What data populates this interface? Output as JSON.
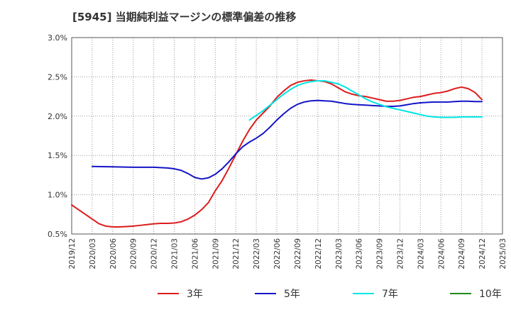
{
  "chart_data": {
    "type": "line",
    "title": "[5945]  当期純利益マージンの標準偏差の推移",
    "xlabel": "",
    "ylabel": "",
    "ylim": [
      0.5,
      3.0
    ],
    "xlim": [
      "2019/12",
      "2025/03"
    ],
    "y_ticks": [
      "0.5%",
      "1.0%",
      "1.5%",
      "2.0%",
      "2.5%",
      "3.0%"
    ],
    "x_ticks": [
      "2019/12",
      "2020/03",
      "2020/06",
      "2020/09",
      "2020/12",
      "2021/03",
      "2021/06",
      "2021/09",
      "2021/12",
      "2022/03",
      "2022/06",
      "2022/09",
      "2022/12",
      "2023/03",
      "2023/06",
      "2023/09",
      "2023/12",
      "2024/03",
      "2024/06",
      "2024/09",
      "2024/12",
      "2025/03"
    ],
    "grid": true,
    "legend_position": "bottom",
    "series": [
      {
        "name": "3年",
        "color": "#dd1c1c",
        "points": [
          [
            "2019/12",
            0.87
          ],
          [
            "2020/01",
            0.81
          ],
          [
            "2020/02",
            0.75
          ],
          [
            "2020/03",
            0.69
          ],
          [
            "2020/04",
            0.63
          ],
          [
            "2020/05",
            0.6
          ],
          [
            "2020/06",
            0.59
          ],
          [
            "2020/07",
            0.59
          ],
          [
            "2020/08",
            0.595
          ],
          [
            "2020/09",
            0.6
          ],
          [
            "2020/10",
            0.61
          ],
          [
            "2020/11",
            0.62
          ],
          [
            "2020/12",
            0.63
          ],
          [
            "2021/01",
            0.635
          ],
          [
            "2021/02",
            0.635
          ],
          [
            "2021/03",
            0.64
          ],
          [
            "2021/04",
            0.655
          ],
          [
            "2021/05",
            0.69
          ],
          [
            "2021/06",
            0.74
          ],
          [
            "2021/07",
            0.81
          ],
          [
            "2021/08",
            0.9
          ],
          [
            "2021/09",
            1.05
          ],
          [
            "2021/10",
            1.18
          ],
          [
            "2021/11",
            1.34
          ],
          [
            "2021/12",
            1.51
          ],
          [
            "2022/01",
            1.68
          ],
          [
            "2022/02",
            1.83
          ],
          [
            "2022/03",
            1.95
          ],
          [
            "2022/04",
            2.04
          ],
          [
            "2022/05",
            2.13
          ],
          [
            "2022/06",
            2.24
          ],
          [
            "2022/07",
            2.32
          ],
          [
            "2022/08",
            2.39
          ],
          [
            "2022/09",
            2.43
          ],
          [
            "2022/10",
            2.45
          ],
          [
            "2022/11",
            2.46
          ],
          [
            "2022/12",
            2.45
          ],
          [
            "2023/01",
            2.44
          ],
          [
            "2023/02",
            2.41
          ],
          [
            "2023/03",
            2.36
          ],
          [
            "2023/04",
            2.31
          ],
          [
            "2023/05",
            2.28
          ],
          [
            "2023/06",
            2.26
          ],
          [
            "2023/07",
            2.25
          ],
          [
            "2023/08",
            2.23
          ],
          [
            "2023/09",
            2.21
          ],
          [
            "2023/10",
            2.19
          ],
          [
            "2023/11",
            2.19
          ],
          [
            "2023/12",
            2.2
          ],
          [
            "2024/01",
            2.22
          ],
          [
            "2024/02",
            2.24
          ],
          [
            "2024/03",
            2.25
          ],
          [
            "2024/04",
            2.27
          ],
          [
            "2024/05",
            2.29
          ],
          [
            "2024/06",
            2.3
          ],
          [
            "2024/07",
            2.32
          ],
          [
            "2024/08",
            2.35
          ],
          [
            "2024/09",
            2.37
          ],
          [
            "2024/10",
            2.35
          ],
          [
            "2024/11",
            2.3
          ],
          [
            "2024/12",
            2.21
          ]
        ]
      },
      {
        "name": "5年",
        "color": "#1414c8",
        "points": [
          [
            "2020/03",
            1.36
          ],
          [
            "2020/06",
            1.355
          ],
          [
            "2020/09",
            1.35
          ],
          [
            "2020/12",
            1.35
          ],
          [
            "2021/01",
            1.345
          ],
          [
            "2021/02",
            1.34
          ],
          [
            "2021/03",
            1.33
          ],
          [
            "2021/04",
            1.31
          ],
          [
            "2021/05",
            1.27
          ],
          [
            "2021/06",
            1.22
          ],
          [
            "2021/07",
            1.2
          ],
          [
            "2021/08",
            1.215
          ],
          [
            "2021/09",
            1.26
          ],
          [
            "2021/10",
            1.33
          ],
          [
            "2021/11",
            1.42
          ],
          [
            "2021/12",
            1.52
          ],
          [
            "2022/01",
            1.61
          ],
          [
            "2022/02",
            1.67
          ],
          [
            "2022/03",
            1.72
          ],
          [
            "2022/04",
            1.78
          ],
          [
            "2022/05",
            1.86
          ],
          [
            "2022/06",
            1.95
          ],
          [
            "2022/07",
            2.03
          ],
          [
            "2022/08",
            2.1
          ],
          [
            "2022/09",
            2.15
          ],
          [
            "2022/10",
            2.18
          ],
          [
            "2022/11",
            2.195
          ],
          [
            "2022/12",
            2.2
          ],
          [
            "2023/01",
            2.195
          ],
          [
            "2023/02",
            2.19
          ],
          [
            "2023/03",
            2.175
          ],
          [
            "2023/04",
            2.16
          ],
          [
            "2023/05",
            2.15
          ],
          [
            "2023/06",
            2.145
          ],
          [
            "2023/07",
            2.14
          ],
          [
            "2023/08",
            2.135
          ],
          [
            "2023/09",
            2.13
          ],
          [
            "2023/10",
            2.125
          ],
          [
            "2023/11",
            2.125
          ],
          [
            "2023/12",
            2.13
          ],
          [
            "2024/01",
            2.145
          ],
          [
            "2024/02",
            2.16
          ],
          [
            "2024/03",
            2.17
          ],
          [
            "2024/04",
            2.175
          ],
          [
            "2024/05",
            2.18
          ],
          [
            "2024/06",
            2.18
          ],
          [
            "2024/07",
            2.18
          ],
          [
            "2024/08",
            2.185
          ],
          [
            "2024/09",
            2.19
          ],
          [
            "2024/10",
            2.19
          ],
          [
            "2024/11",
            2.185
          ],
          [
            "2024/12",
            2.185
          ]
        ]
      },
      {
        "name": "7年",
        "color": "#00e5e5",
        "points": [
          [
            "2022/02",
            1.95
          ],
          [
            "2022/03",
            2.01
          ],
          [
            "2022/04",
            2.07
          ],
          [
            "2022/05",
            2.14
          ],
          [
            "2022/06",
            2.21
          ],
          [
            "2022/07",
            2.28
          ],
          [
            "2022/08",
            2.34
          ],
          [
            "2022/09",
            2.39
          ],
          [
            "2022/10",
            2.42
          ],
          [
            "2022/11",
            2.44
          ],
          [
            "2022/12",
            2.45
          ],
          [
            "2023/01",
            2.45
          ],
          [
            "2023/02",
            2.43
          ],
          [
            "2023/03",
            2.41
          ],
          [
            "2023/04",
            2.37
          ],
          [
            "2023/05",
            2.32
          ],
          [
            "2023/06",
            2.27
          ],
          [
            "2023/07",
            2.22
          ],
          [
            "2023/08",
            2.18
          ],
          [
            "2023/09",
            2.15
          ],
          [
            "2023/10",
            2.12
          ],
          [
            "2023/11",
            2.1
          ],
          [
            "2023/12",
            2.08
          ],
          [
            "2024/01",
            2.06
          ],
          [
            "2024/02",
            2.04
          ],
          [
            "2024/03",
            2.02
          ],
          [
            "2024/04",
            2.0
          ],
          [
            "2024/05",
            1.99
          ],
          [
            "2024/06",
            1.985
          ],
          [
            "2024/07",
            1.985
          ],
          [
            "2024/08",
            1.985
          ],
          [
            "2024/09",
            1.99
          ],
          [
            "2024/10",
            1.99
          ],
          [
            "2024/11",
            1.99
          ],
          [
            "2024/12",
            1.99
          ]
        ]
      },
      {
        "name": "10年",
        "color": "#1e8c1e",
        "points": []
      }
    ]
  }
}
